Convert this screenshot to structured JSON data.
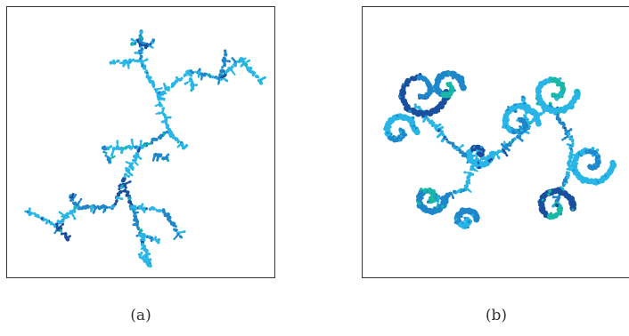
{
  "panels": [
    {
      "id": "a",
      "caption": "(a)",
      "fractal": "dendrite-julia-set"
    },
    {
      "id": "b",
      "caption": "(b)",
      "fractal": "spiral-julia-set"
    }
  ],
  "palette": {
    "light_cyan": "#29b6e6",
    "mid_blue": "#1f87c9",
    "dark_blue": "#1a4f9e",
    "teal": "#17b8a6",
    "border": "#333333"
  }
}
